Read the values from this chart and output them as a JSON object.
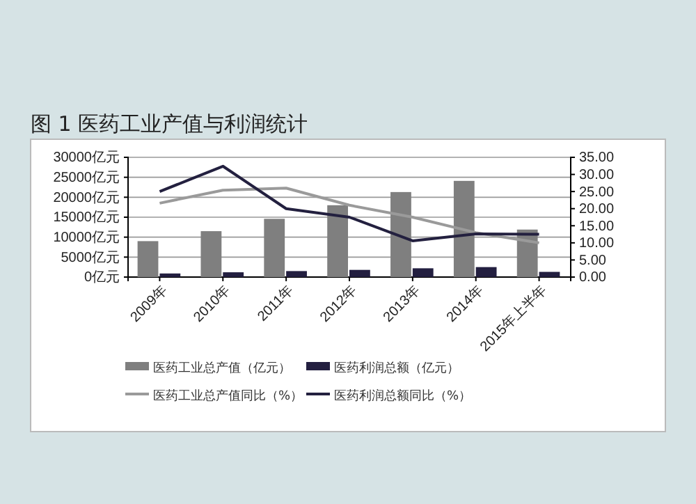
{
  "chart_data": {
    "type": "bar",
    "title": "图 1    医药工业产值与利润统计",
    "categories": [
      "2009年",
      "2010年",
      "2011年",
      "2012年",
      "2013年",
      "2014年",
      "2015年上半年"
    ],
    "series": [
      {
        "name": "医药工业总产值（亿元）",
        "color": "#7f7f7f",
        "values": [
          9000,
          11500,
          14600,
          18000,
          21300,
          24100,
          11900
        ]
      },
      {
        "name": "医药利润总额（亿元）",
        "color": "#231f40",
        "values": [
          900,
          1200,
          1500,
          1800,
          2200,
          2500,
          1300
        ]
      },
      {
        "name": "医药工业总产值同比（%）",
        "type": "line",
        "axis": "y2",
        "color": "#9a9a9a",
        "values": [
          21.6,
          25.4,
          26,
          21,
          17.5,
          13,
          10
        ]
      },
      {
        "name": "医药利润总额同比（%）",
        "type": "line",
        "axis": "y2",
        "color": "#23203f",
        "values": [
          25,
          32.4,
          20,
          17.5,
          10.6,
          12.6,
          12.5
        ]
      }
    ],
    "ylim": [
      0,
      30000
    ],
    "yticks": [
      {
        "value": 0,
        "label": "0亿元"
      },
      {
        "value": 5000,
        "label": "5000亿元"
      },
      {
        "value": 10000,
        "label": "10000亿元"
      },
      {
        "value": 15000,
        "label": "15000亿元"
      },
      {
        "value": 20000,
        "label": "20000亿元"
      },
      {
        "value": 25000,
        "label": "25000亿元"
      },
      {
        "value": 30000,
        "label": "30000亿元"
      }
    ],
    "y2lim": [
      0,
      35
    ],
    "y2ticks": [
      {
        "value": 0,
        "label": "0.00"
      },
      {
        "value": 5,
        "label": "5.00"
      },
      {
        "value": 10,
        "label": "10.00"
      },
      {
        "value": 15,
        "label": "15.00"
      },
      {
        "value": 20,
        "label": "20.00"
      },
      {
        "value": 25,
        "label": "25.00"
      },
      {
        "value": 30,
        "label": "30.00"
      },
      {
        "value": 35,
        "label": "35.00"
      }
    ],
    "grid": "y",
    "legend": "bottom",
    "marker": "none"
  }
}
